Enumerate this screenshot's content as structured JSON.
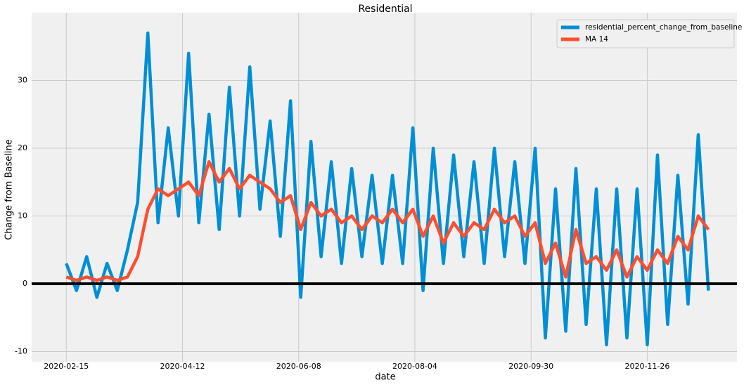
{
  "chart_data": {
    "type": "line",
    "title": "Residential",
    "xlabel": "date",
    "ylabel": "Change from Baseline",
    "x": [
      "2020-02-15",
      "2020-02-20",
      "2020-02-25",
      "2020-03-01",
      "2020-03-06",
      "2020-03-11",
      "2020-03-16",
      "2020-03-21",
      "2020-03-26",
      "2020-03-31",
      "2020-04-05",
      "2020-04-10",
      "2020-04-15",
      "2020-04-20",
      "2020-04-25",
      "2020-04-30",
      "2020-05-05",
      "2020-05-10",
      "2020-05-15",
      "2020-05-20",
      "2020-05-25",
      "2020-05-30",
      "2020-06-04",
      "2020-06-09",
      "2020-06-14",
      "2020-06-19",
      "2020-06-24",
      "2020-06-29",
      "2020-07-04",
      "2020-07-09",
      "2020-07-14",
      "2020-07-19",
      "2020-07-24",
      "2020-07-29",
      "2020-08-03",
      "2020-08-08",
      "2020-08-13",
      "2020-08-18",
      "2020-08-23",
      "2020-08-28",
      "2020-09-02",
      "2020-09-07",
      "2020-09-12",
      "2020-09-17",
      "2020-09-22",
      "2020-09-27",
      "2020-10-02",
      "2020-10-07",
      "2020-10-12",
      "2020-10-17",
      "2020-10-22",
      "2020-10-27",
      "2020-11-01",
      "2020-11-06",
      "2020-11-11",
      "2020-11-16",
      "2020-11-21",
      "2020-11-26",
      "2020-12-01",
      "2020-12-06",
      "2020-12-11",
      "2020-12-16",
      "2020-12-21",
      "2020-12-26"
    ],
    "series": [
      {
        "name": "residential_percent_change_from_baseline",
        "color": "#008fd5",
        "values": [
          3,
          -1,
          4,
          -2,
          3,
          -1,
          5,
          12,
          37,
          9,
          23,
          10,
          34,
          9,
          25,
          8,
          29,
          10,
          32,
          11,
          24,
          7,
          27,
          -2,
          21,
          4,
          18,
          3,
          17,
          4,
          16,
          3,
          16,
          3,
          23,
          -1,
          20,
          3,
          19,
          4,
          18,
          3,
          20,
          4,
          18,
          3,
          20,
          -8,
          14,
          -7,
          17,
          -6,
          14,
          -9,
          14,
          -8,
          14,
          -9,
          19,
          -6,
          16,
          -3,
          22,
          -1
        ]
      },
      {
        "name": "MA 14",
        "color": "#fc4f30",
        "values": [
          1,
          0.5,
          1,
          0.5,
          1,
          0.5,
          1,
          4,
          11,
          14,
          13,
          14,
          15,
          13,
          18,
          15,
          17,
          14,
          16,
          15,
          14,
          12,
          13,
          8,
          12,
          10,
          11,
          9,
          10,
          8,
          10,
          9,
          11,
          9,
          11,
          7,
          10,
          6,
          9,
          7,
          9,
          8,
          11,
          9,
          10,
          7,
          9,
          3,
          6,
          1,
          8,
          3,
          4,
          2,
          5,
          1,
          4,
          2,
          5,
          3,
          7,
          5,
          10,
          8
        ]
      }
    ],
    "xlim": [
      "2020-01-29",
      "2021-01-09"
    ],
    "ylim": [
      -11.5,
      40
    ],
    "xticks": [
      "2020-02-15",
      "2020-04-12",
      "2020-06-08",
      "2020-08-04",
      "2020-09-30",
      "2020-11-26"
    ],
    "yticks": [
      -10,
      0,
      10,
      20,
      30
    ],
    "hline": 0,
    "grid": true,
    "legend": "upper right"
  }
}
